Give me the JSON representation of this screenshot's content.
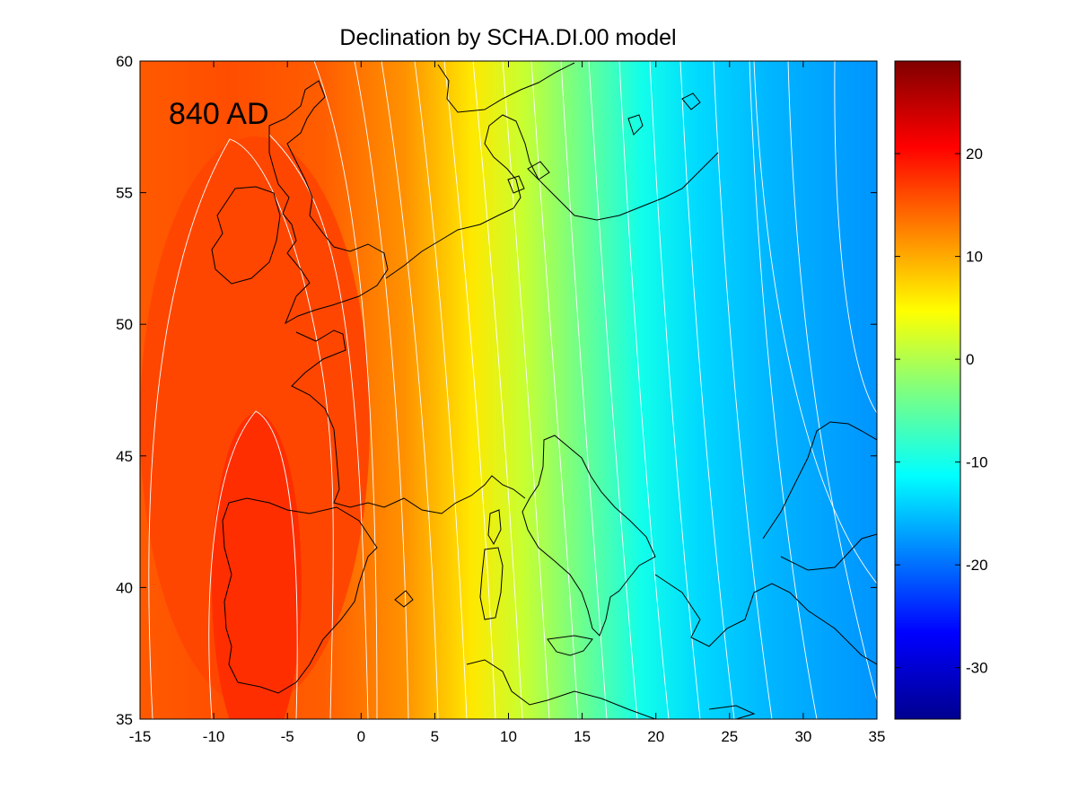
{
  "figure": {
    "title": "Declination by SCHA.DI.00 model",
    "epoch_label": "840 AD"
  },
  "chart_data": {
    "type": "heatmap",
    "title": "Declination by SCHA.DI.00 model",
    "xlabel": "",
    "ylabel": "",
    "xlim": [
      -15,
      35
    ],
    "ylim": [
      35,
      60
    ],
    "x_ticks": [
      -15,
      -10,
      -5,
      0,
      5,
      10,
      15,
      20,
      25,
      30,
      35
    ],
    "y_ticks": [
      35,
      40,
      45,
      50,
      55,
      60
    ],
    "colorbar": {
      "range": [
        -35,
        29
      ],
      "ticks": [
        -30,
        -20,
        -10,
        0,
        10,
        20
      ],
      "colormap": "jet"
    },
    "contour_interval_deg": 2,
    "annotation": "840 AD",
    "field_samples": [
      {
        "lon": -7,
        "lat": 41,
        "declination": 20
      },
      {
        "lon": -10,
        "lat": 52,
        "declination": 18
      },
      {
        "lon": 0,
        "lat": 50,
        "declination": 14
      },
      {
        "lon": 5,
        "lat": 50,
        "declination": 9
      },
      {
        "lon": 10,
        "lat": 48,
        "declination": 4
      },
      {
        "lon": 15,
        "lat": 48,
        "declination": -2
      },
      {
        "lon": 20,
        "lat": 48,
        "declination": -7
      },
      {
        "lon": 25,
        "lat": 48,
        "declination": -11
      },
      {
        "lon": 30,
        "lat": 50,
        "declination": -16
      },
      {
        "lon": 34,
        "lat": 52,
        "declination": -18
      }
    ]
  },
  "colors": {
    "land_outline": "#000000",
    "contour_line": "#ffffff"
  }
}
